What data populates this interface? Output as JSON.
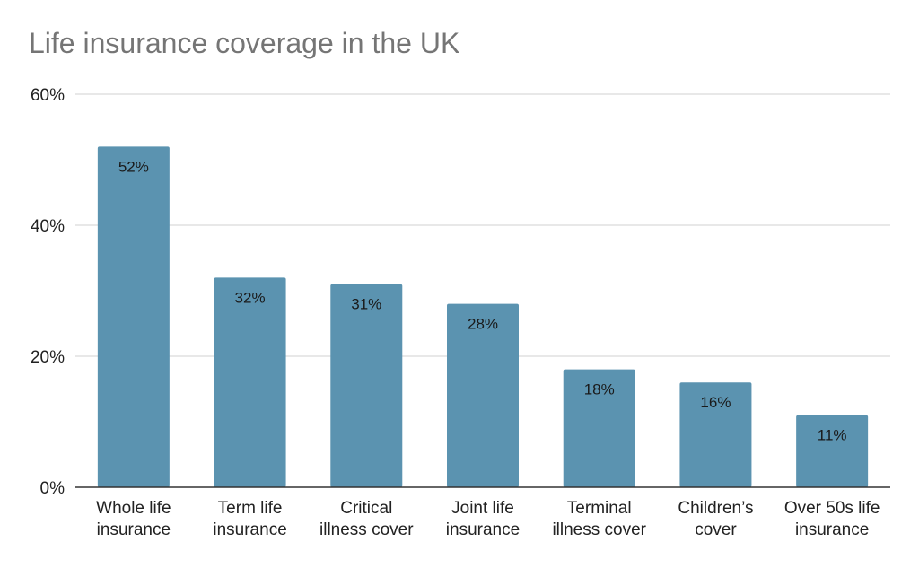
{
  "chart_data": {
    "type": "bar",
    "title": "Life insurance coverage in the UK",
    "xlabel": "",
    "ylabel": "",
    "ylim": [
      0,
      60
    ],
    "yticks": [
      0,
      20,
      40,
      60
    ],
    "ytick_labels": [
      "0%",
      "20%",
      "40%",
      "60%"
    ],
    "grid": true,
    "legend": "none",
    "categories": [
      [
        "Whole life",
        "insurance"
      ],
      [
        "Term life",
        "insurance"
      ],
      [
        "Critical",
        "illness cover"
      ],
      [
        "Joint life",
        "insurance"
      ],
      [
        "Terminal",
        "illness cover"
      ],
      [
        "Children’s",
        "cover"
      ],
      [
        "Over 50s life",
        "insurance"
      ]
    ],
    "values": [
      52,
      32,
      31,
      28,
      18,
      16,
      11
    ],
    "data_labels": [
      "52%",
      "32%",
      "31%",
      "28%",
      "18%",
      "16%",
      "11%"
    ]
  },
  "colors": {
    "bar": "#5b93b0",
    "grid": "#d9d9d9",
    "axis": "#333333"
  }
}
